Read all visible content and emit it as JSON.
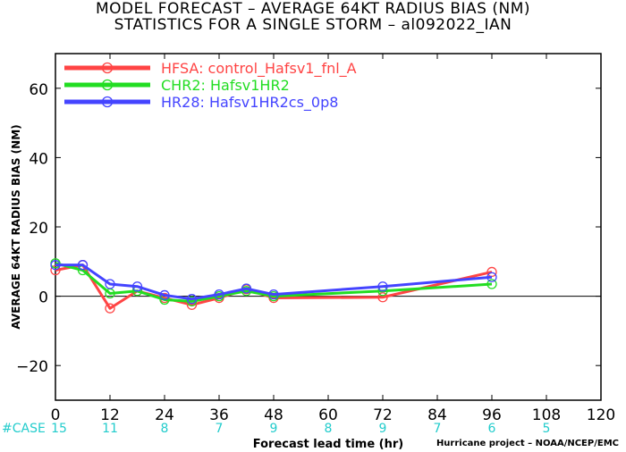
{
  "chart_data": {
    "type": "line",
    "title": "MODEL FORECAST – AVERAGE 64KT RADIUS BIAS (NM)",
    "subtitle": "STATISTICS FOR A SINGLE STORM – al092022_IAN",
    "xlabel": "Forecast lead time (hr)",
    "ylabel": "AVERAGE 64KT RADIUS BIAS (NM)",
    "xlim": [
      0,
      120
    ],
    "ylim": [
      -30,
      70
    ],
    "xticks": [
      0,
      12,
      24,
      36,
      48,
      60,
      72,
      84,
      96,
      108,
      120
    ],
    "yticks": [
      -20,
      0,
      20,
      40,
      60
    ],
    "zero_line": true,
    "legend_position": "top-left",
    "series": [
      {
        "name": "HFSA: control_Hafsv1_fnl_A",
        "color": "#ff4444",
        "x": [
          0,
          6,
          12,
          18,
          24,
          30,
          36,
          42,
          48,
          72,
          96
        ],
        "y": [
          7.5,
          9,
          -3.5,
          1.5,
          -0.5,
          -2.5,
          -0.5,
          2,
          -0.5,
          -0.3,
          7
        ]
      },
      {
        "name": "CHR2: Hafsv1HR2",
        "color": "#22dd22",
        "x": [
          0,
          6,
          12,
          18,
          24,
          30,
          36,
          42,
          48,
          72,
          96
        ],
        "y": [
          9.5,
          7.5,
          0.8,
          1.5,
          -1,
          -1.5,
          0,
          1.5,
          0,
          1.5,
          3.5
        ]
      },
      {
        "name": "HR28: Hafsv1HR2cs_0p8",
        "color": "#4444ff",
        "x": [
          0,
          6,
          12,
          18,
          24,
          30,
          36,
          42,
          48,
          72,
          96
        ],
        "y": [
          9,
          9,
          3.5,
          2.8,
          0.3,
          -0.8,
          0.5,
          2.2,
          0.5,
          2.8,
          5.5
        ]
      }
    ],
    "case_label": "#CASE",
    "case_color": "#22cccc",
    "cases": [
      {
        "x": 0,
        "n": "15"
      },
      {
        "x": 12,
        "n": "11"
      },
      {
        "x": 24,
        "n": "8"
      },
      {
        "x": 36,
        "n": "7"
      },
      {
        "x": 48,
        "n": "9"
      },
      {
        "x": 60,
        "n": "8"
      },
      {
        "x": 72,
        "n": "9"
      },
      {
        "x": 84,
        "n": "7"
      },
      {
        "x": 96,
        "n": "6"
      },
      {
        "x": 108,
        "n": "5"
      }
    ]
  },
  "credit": "Hurricane project – NOAA/NCEP/EMC"
}
